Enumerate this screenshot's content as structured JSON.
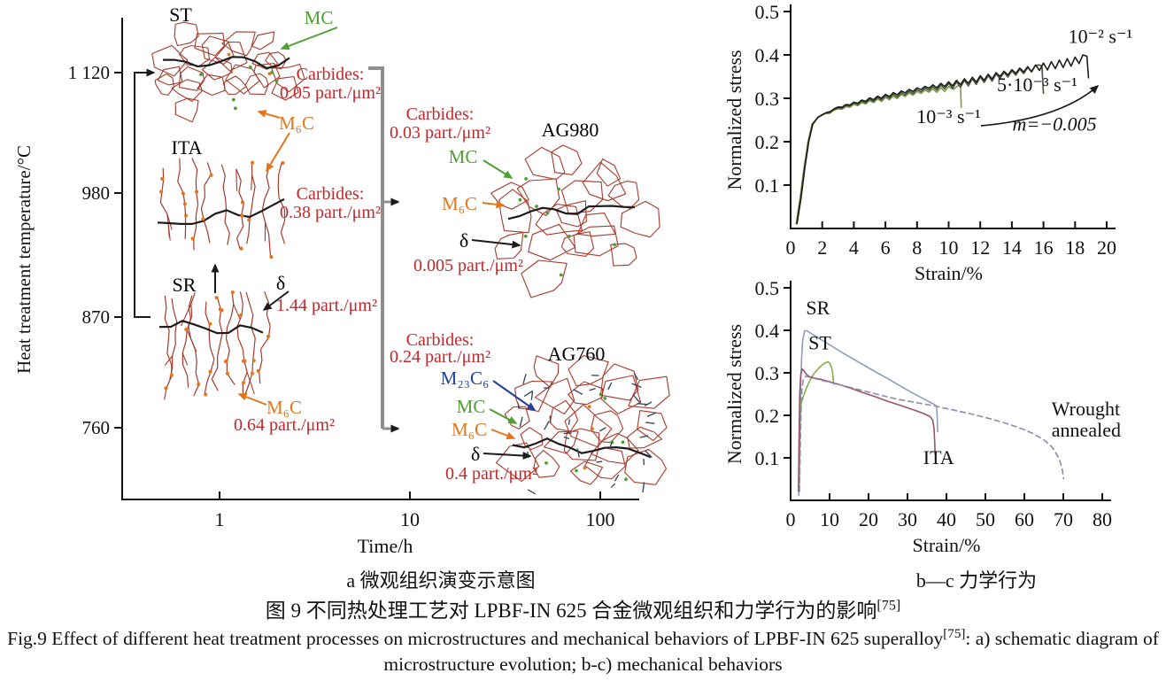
{
  "figure": {
    "panel_a_caption": "a 微观组织演变示意图",
    "panel_bc_caption": "b—c 力学行为",
    "title_zh": "图 9  不同热处理工艺对 LPBF-IN 625 合金微观组织和力学行为的影响",
    "title_zh_ref": "[75]",
    "caption_en_pre": "Fig.9 Effect of different heat treatment processes on microstructures and mechanical behaviors of LPBF-IN 625 superalloy",
    "caption_en_ref": "[75]",
    "caption_en_post": ": a) schematic diagram of microstructure evolution; b-c) mechanical behaviors"
  },
  "schematic": {
    "ylabel": "Heat treatment temperature/°C",
    "xlabel": "Time/h",
    "yticks": [
      "1 120",
      "980",
      "870",
      "760"
    ],
    "xticks": [
      "1",
      "10",
      "100"
    ],
    "states": {
      "st": "ST",
      "ita": "ITA",
      "sr": "SR",
      "ag980": "AG980",
      "ag760": "AG760"
    },
    "annotations": {
      "mc_st": "MC",
      "m6c_st": "M₆C",
      "carbides_st_1": "Carbides:",
      "carbides_st_2": "0.05 part./μm²",
      "carbides_ita_1": "Carbides:",
      "carbides_ita_2": "0.38 part./μm²",
      "delta_sr": "δ",
      "delta_sr_value": "1.44 part./μm²",
      "m6c_sr": "M₆C",
      "m6c_sr_value": "0.64 part./μm²",
      "carbides_ag980_1": "Carbides:",
      "carbides_ag980_2": "0.03 part./μm²",
      "mc_ag980": "MC",
      "m6c_ag980": "M₆C",
      "delta_ag980": "δ",
      "delta_ag980_value": "0.005 part./μm²",
      "carbides_ag760_1": "Carbides:",
      "carbides_ag760_2": "0.24 part./μm²",
      "m23c6_ag760": "M₂₃C₆",
      "mc_ag760": "MC",
      "m6c_ag760": "M₆C",
      "delta_ag760": "δ",
      "delta_ag760_value": "0.4 part./μm²"
    },
    "colors": {
      "grain_red": "#a63a2c",
      "mc_green": "#4f9f33",
      "m6c_orange": "#e2761b",
      "m23c6_blue": "#24409a",
      "carbide_red": "#c3272b",
      "delta_black": "#1b1b1b",
      "bracket_gray": "#8f8f8f"
    }
  },
  "chart_data": [
    {
      "id": "chart-b",
      "type": "line",
      "title": "",
      "xlabel": "Strain/%",
      "ylabel": "Normalized stress",
      "xlim": [
        0,
        20
      ],
      "ylim": [
        0,
        0.5
      ],
      "grid": false,
      "legend": "inline-annotations",
      "xticks": [
        0,
        2,
        4,
        6,
        8,
        10,
        12,
        14,
        16,
        18,
        20
      ],
      "xtick_labels": [
        "0",
        "2",
        "4",
        "6",
        "8",
        "10",
        "12",
        "14",
        "16",
        "18",
        "20"
      ],
      "yticks": [
        0.1,
        0.2,
        0.3,
        0.4,
        0.5
      ],
      "ytick_labels": [
        "0.1",
        "0.2",
        "0.3",
        "0.4",
        "0.5"
      ],
      "series": [
        {
          "name": "10⁻³ s⁻¹",
          "color": "#7d9c4a",
          "serration": {
            "from": 2.0,
            "to": 10.5,
            "min": 0.003,
            "max": 0.013
          },
          "points": [
            [
              0.35,
              0.01
            ],
            [
              0.6,
              0.07
            ],
            [
              0.85,
              0.14
            ],
            [
              1.1,
              0.2
            ],
            [
              1.35,
              0.24
            ],
            [
              1.7,
              0.255
            ],
            [
              2.2,
              0.265
            ],
            [
              3,
              0.276
            ],
            [
              4,
              0.286
            ],
            [
              5,
              0.295
            ],
            [
              6,
              0.302
            ],
            [
              7,
              0.309
            ],
            [
              8,
              0.316
            ],
            [
              9,
              0.322
            ],
            [
              10,
              0.327
            ],
            [
              10.6,
              0.329
            ],
            [
              10.75,
              0.328
            ],
            [
              10.8,
              0.278
            ]
          ]
        },
        {
          "name": "5·10⁻³ s⁻¹",
          "color": "#4a5240",
          "serration": {
            "from": 2.0,
            "to": 15.6,
            "min": 0.003,
            "max": 0.02
          },
          "points": [
            [
              0.38,
              0.01
            ],
            [
              0.63,
              0.07
            ],
            [
              0.88,
              0.14
            ],
            [
              1.13,
              0.2
            ],
            [
              1.38,
              0.24
            ],
            [
              1.72,
              0.256
            ],
            [
              2.2,
              0.266
            ],
            [
              3,
              0.278
            ],
            [
              4,
              0.289
            ],
            [
              5,
              0.298
            ],
            [
              6,
              0.306
            ],
            [
              7,
              0.313
            ],
            [
              8,
              0.32
            ],
            [
              9,
              0.327
            ],
            [
              10,
              0.334
            ],
            [
              11,
              0.341
            ],
            [
              12,
              0.349
            ],
            [
              13,
              0.356
            ],
            [
              14,
              0.363
            ],
            [
              15,
              0.371
            ],
            [
              15.7,
              0.377
            ],
            [
              15.9,
              0.375
            ],
            [
              16,
              0.31
            ]
          ]
        },
        {
          "name": "10⁻² s⁻¹",
          "color": "#1e2019",
          "serration": {
            "from": 2.2,
            "to": 18.3,
            "min": 0.003,
            "max": 0.02
          },
          "points": [
            [
              0.4,
              0.01
            ],
            [
              0.66,
              0.07
            ],
            [
              0.9,
              0.14
            ],
            [
              1.15,
              0.2
            ],
            [
              1.4,
              0.24
            ],
            [
              1.75,
              0.257
            ],
            [
              2.25,
              0.267
            ],
            [
              3,
              0.28
            ],
            [
              4,
              0.291
            ],
            [
              5,
              0.301
            ],
            [
              6,
              0.309
            ],
            [
              7,
              0.317
            ],
            [
              8,
              0.324
            ],
            [
              9,
              0.331
            ],
            [
              10,
              0.338
            ],
            [
              11,
              0.345
            ],
            [
              12,
              0.352
            ],
            [
              13,
              0.359
            ],
            [
              14,
              0.366
            ],
            [
              15,
              0.373
            ],
            [
              16,
              0.381
            ],
            [
              17,
              0.388
            ],
            [
              18,
              0.395
            ],
            [
              18.5,
              0.4
            ],
            [
              18.75,
              0.397
            ],
            [
              18.85,
              0.346
            ]
          ]
        }
      ],
      "annotations": [
        {
          "text": "10⁻² s⁻¹",
          "x": 19.6,
          "y": 0.428,
          "anchor": "middle"
        },
        {
          "text": "5·10⁻³ s⁻¹",
          "x": 15.6,
          "y": 0.316,
          "anchor": "middle"
        },
        {
          "text": "10⁻³ s⁻¹",
          "x": 10.0,
          "y": 0.243,
          "anchor": "middle"
        },
        {
          "text": "m=−0.005",
          "x": 16.7,
          "y": 0.226,
          "anchor": "middle",
          "italic": true
        }
      ]
    },
    {
      "id": "chart-c",
      "type": "line",
      "title": "",
      "xlabel": "Strain/%",
      "ylabel": "Normalized stress",
      "xlim": [
        0,
        80
      ],
      "ylim": [
        0,
        0.5
      ],
      "grid": false,
      "legend": "inline-annotations",
      "xticks": [
        0,
        10,
        20,
        30,
        40,
        50,
        60,
        70,
        80
      ],
      "xtick_labels": [
        "0",
        "10",
        "20",
        "30",
        "40",
        "50",
        "60",
        "70",
        "80"
      ],
      "yticks": [
        0.1,
        0.2,
        0.3,
        0.4,
        0.5
      ],
      "ytick_labels": [
        "0.1",
        "0.2",
        "0.3",
        "0.4",
        "0.5"
      ],
      "series": [
        {
          "name": "SR",
          "color": "#8e9cbd",
          "points": [
            [
              2.1,
              0.01
            ],
            [
              2.3,
              0.13
            ],
            [
              2.55,
              0.26
            ],
            [
              2.8,
              0.33
            ],
            [
              3.1,
              0.375
            ],
            [
              3.6,
              0.399
            ],
            [
              4.2,
              0.399
            ],
            [
              5,
              0.394
            ],
            [
              6.5,
              0.386
            ],
            [
              8,
              0.377
            ],
            [
              10,
              0.366
            ],
            [
              13,
              0.349
            ],
            [
              16,
              0.333
            ],
            [
              19,
              0.317
            ],
            [
              22,
              0.301
            ],
            [
              25,
              0.286
            ],
            [
              28,
              0.27
            ],
            [
              31,
              0.254
            ],
            [
              33.5,
              0.242
            ],
            [
              35.5,
              0.232
            ],
            [
              36.8,
              0.226
            ],
            [
              37.4,
              0.222
            ],
            [
              37.6,
              0.205
            ],
            [
              37.75,
              0.16
            ]
          ]
        },
        {
          "name": "ST",
          "color": "#84ad4a",
          "points": [
            [
              2.2,
              0.02
            ],
            [
              2.35,
              0.12
            ],
            [
              2.5,
              0.2
            ],
            [
              2.7,
              0.228
            ],
            [
              3.2,
              0.243
            ],
            [
              4,
              0.263
            ],
            [
              5,
              0.283
            ],
            [
              6,
              0.298
            ],
            [
              7,
              0.309
            ],
            [
              8,
              0.318
            ],
            [
              9,
              0.324
            ],
            [
              9.6,
              0.326
            ],
            [
              10.1,
              0.322
            ],
            [
              10.5,
              0.313
            ],
            [
              10.8,
              0.3
            ],
            [
              11.05,
              0.272
            ]
          ]
        },
        {
          "name": "ITA",
          "color": "#9a5468",
          "points": [
            [
              2.0,
              0.02
            ],
            [
              2.15,
              0.14
            ],
            [
              2.35,
              0.25
            ],
            [
              2.6,
              0.295
            ],
            [
              2.95,
              0.309
            ],
            [
              3.4,
              0.305
            ],
            [
              4,
              0.297
            ],
            [
              4.8,
              0.291
            ],
            [
              6,
              0.288
            ],
            [
              8,
              0.284
            ],
            [
              10,
              0.279
            ],
            [
              13,
              0.271
            ],
            [
              16,
              0.262
            ],
            [
              19,
              0.252
            ],
            [
              22,
              0.243
            ],
            [
              25,
              0.233
            ],
            [
              28,
              0.224
            ],
            [
              30.5,
              0.216
            ],
            [
              32.5,
              0.21
            ],
            [
              34.5,
              0.203
            ],
            [
              35.8,
              0.197
            ],
            [
              36.4,
              0.19
            ],
            [
              36.8,
              0.172
            ],
            [
              37.0,
              0.135
            ],
            [
              37.1,
              0.108
            ]
          ]
        },
        {
          "name": "Wrought annealed",
          "color": "#9089ab",
          "dash": "7 3",
          "points": [
            [
              2.3,
              0.02
            ],
            [
              2.45,
              0.11
            ],
            [
              2.65,
              0.2
            ],
            [
              2.9,
              0.262
            ],
            [
              3.3,
              0.285
            ],
            [
              3.9,
              0.292
            ],
            [
              4.8,
              0.29
            ],
            [
              6,
              0.287
            ],
            [
              8,
              0.282
            ],
            [
              10,
              0.278
            ],
            [
              13,
              0.271
            ],
            [
              16,
              0.264
            ],
            [
              19,
              0.257
            ],
            [
              22,
              0.25
            ],
            [
              25,
              0.243
            ],
            [
              28,
              0.237
            ],
            [
              31,
              0.232
            ],
            [
              34,
              0.227
            ],
            [
              37,
              0.222
            ],
            [
              40,
              0.216
            ],
            [
              43,
              0.21
            ],
            [
              46,
              0.204
            ],
            [
              49,
              0.197
            ],
            [
              52,
              0.19
            ],
            [
              55,
              0.182
            ],
            [
              58,
              0.173
            ],
            [
              60,
              0.166
            ],
            [
              62,
              0.158
            ],
            [
              64,
              0.148
            ],
            [
              65.5,
              0.139
            ],
            [
              67,
              0.126
            ],
            [
              68,
              0.113
            ],
            [
              69,
              0.096
            ],
            [
              69.7,
              0.075
            ],
            [
              70.1,
              0.05
            ]
          ]
        }
      ],
      "annotations": [
        {
          "text": "SR",
          "x": 7.0,
          "y": 0.437,
          "anchor": "middle"
        },
        {
          "text": "ST",
          "x": 7.5,
          "y": 0.355,
          "anchor": "middle"
        },
        {
          "text": "ITA",
          "x": 38,
          "y": 0.085,
          "anchor": "middle"
        },
        {
          "text": "Wrought",
          "x": 67,
          "y": 0.2,
          "anchor": "start"
        },
        {
          "text": "annealed",
          "x": 67,
          "y": 0.15,
          "anchor": "start"
        }
      ]
    }
  ]
}
